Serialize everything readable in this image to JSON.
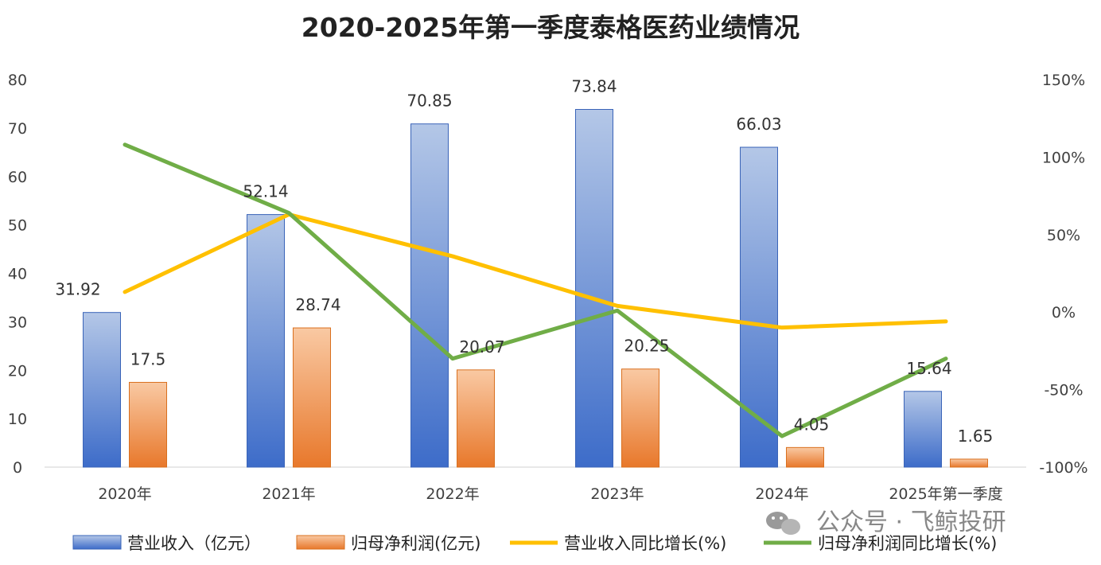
{
  "chart_data": {
    "type": "bar",
    "title": "2020-2025年第一季度泰格医药业绩情况",
    "categories": [
      "2020年",
      "2021年",
      "2022年",
      "2023年",
      "2024年",
      "2025年第一季度"
    ],
    "series": [
      {
        "name": "营业收入（亿元）",
        "kind": "bar",
        "axis": "left",
        "color": "#4472C4",
        "values": [
          31.92,
          52.14,
          70.85,
          73.84,
          66.03,
          15.64
        ],
        "labels": [
          "31.92",
          "52.14",
          "70.85",
          "73.84",
          "66.03",
          "15.64"
        ]
      },
      {
        "name": "归母净利润(亿元)",
        "kind": "bar",
        "axis": "left",
        "color": "#ED7D31",
        "values": [
          17.5,
          28.74,
          20.07,
          20.25,
          4.05,
          1.65
        ],
        "labels": [
          "17.5",
          "28.74",
          "20.07",
          "20.25",
          "4.05",
          "1.65"
        ]
      },
      {
        "name": "营业收入同比增长(%)",
        "kind": "line",
        "axis": "right",
        "color": "#FFC000",
        "values": [
          13,
          63,
          36,
          4,
          -10,
          -6
        ]
      },
      {
        "name": "归母净利润同比增长(%)",
        "kind": "line",
        "axis": "right",
        "color": "#70AD47",
        "values": [
          108,
          64,
          -30,
          1,
          -80,
          -30
        ]
      }
    ],
    "y_left": {
      "min": 0,
      "max": 80,
      "ticks": [
        "0",
        "10",
        "20",
        "30",
        "40",
        "50",
        "60",
        "70",
        "80"
      ]
    },
    "y_right": {
      "min": -100,
      "max": 150,
      "ticks": [
        "-100%",
        "-50%",
        "0%",
        "50%",
        "100%",
        "150%"
      ]
    },
    "grid": false,
    "legend_position": "bottom"
  },
  "watermark": {
    "text": "公众号 · 飞鲸投研",
    "icon": "wechat-icon"
  }
}
